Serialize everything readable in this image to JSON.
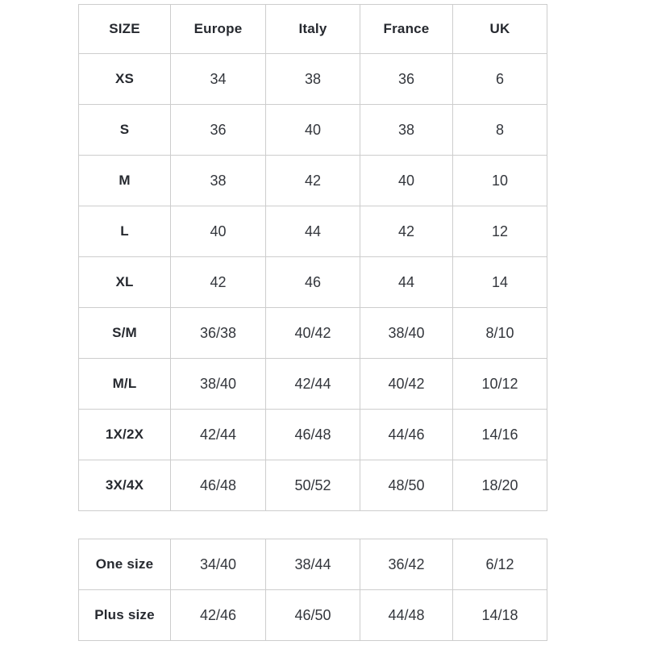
{
  "colors": {
    "background": "#ffffff",
    "border": "#cdcdcd",
    "header_text": "#26292f",
    "cell_text": "#33363c"
  },
  "chart_data": [
    {
      "type": "table",
      "columns": [
        "SIZE",
        "Europe",
        "Italy",
        "France",
        "UK"
      ],
      "rows": [
        [
          "XS",
          "34",
          "38",
          "36",
          "6"
        ],
        [
          "S",
          "36",
          "40",
          "38",
          "8"
        ],
        [
          "M",
          "38",
          "42",
          "40",
          "10"
        ],
        [
          "L",
          "40",
          "44",
          "42",
          "12"
        ],
        [
          "XL",
          "42",
          "46",
          "44",
          "14"
        ],
        [
          "S/M",
          "36/38",
          "40/42",
          "38/40",
          "8/10"
        ],
        [
          "M/L",
          "38/40",
          "42/44",
          "40/42",
          "10/12"
        ],
        [
          "1X/2X",
          "42/44",
          "46/48",
          "44/46",
          "14/16"
        ],
        [
          "3X/4X",
          "46/48",
          "50/52",
          "48/50",
          "18/20"
        ]
      ]
    },
    {
      "type": "table",
      "columns": [],
      "rows": [
        [
          "One size",
          "34/40",
          "38/44",
          "36/42",
          "6/12"
        ],
        [
          "Plus size",
          "42/46",
          "46/50",
          "44/48",
          "14/18"
        ]
      ]
    }
  ]
}
